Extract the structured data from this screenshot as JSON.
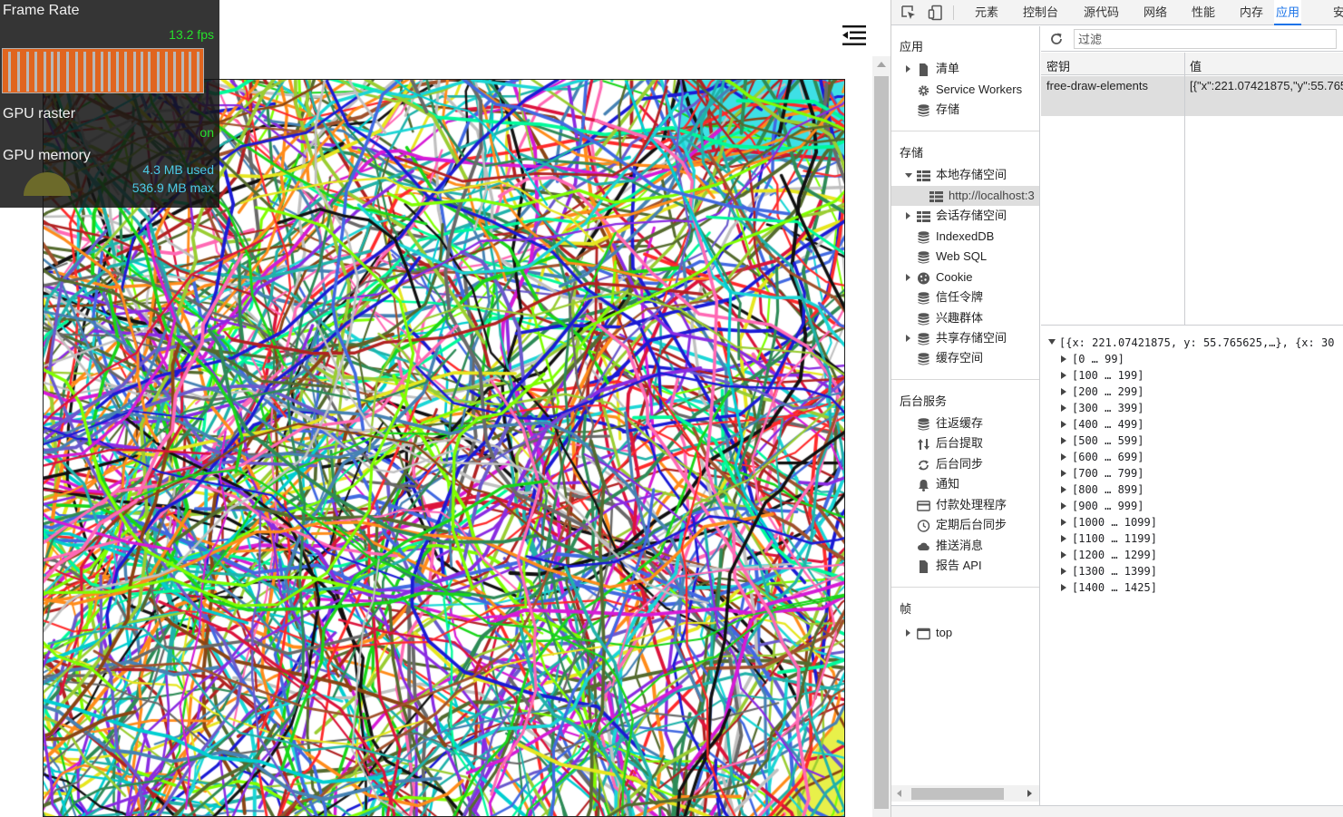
{
  "hud": {
    "frame_rate_label": "Frame Rate",
    "fps_value": "13.2 fps",
    "gpu_raster_label": "GPU raster",
    "gpu_raster_value": "on",
    "gpu_memory_label": "GPU memory",
    "gpu_memory_used": "4.3 MB used",
    "gpu_memory_max": "536.9 MB max",
    "fps_color": "#26e02b",
    "memory_color": "#4ccbe6"
  },
  "page": {
    "menu_icon": "menu-collapse-icon"
  },
  "devtools": {
    "tabs": [
      {
        "label": "元素",
        "active": false
      },
      {
        "label": "控制台",
        "active": false
      },
      {
        "label": "源代码",
        "active": false
      },
      {
        "label": "网络",
        "active": false
      },
      {
        "label": "性能",
        "active": false
      },
      {
        "label": "内存",
        "active": false
      },
      {
        "label": "应用",
        "active": true
      },
      {
        "label": "安",
        "active": false
      }
    ],
    "accent_color": "#1a73e8",
    "sidebar": {
      "app_section": "应用",
      "app_items": [
        {
          "label": "清单",
          "icon": "file-icon",
          "expandable": true
        },
        {
          "label": "Service Workers",
          "icon": "gear-icon",
          "expandable": false
        },
        {
          "label": "存储",
          "icon": "database-icon",
          "expandable": false
        }
      ],
      "storage_section": "存储",
      "storage_items": [
        {
          "label": "本地存储空间",
          "icon": "grid-icon",
          "expandable": true,
          "expanded": true
        },
        {
          "label": "http://localhost:3",
          "icon": "grid-icon",
          "child": true,
          "selected": true
        },
        {
          "label": "会话存储空间",
          "icon": "grid-icon",
          "expandable": true
        },
        {
          "label": "IndexedDB",
          "icon": "database-icon"
        },
        {
          "label": "Web SQL",
          "icon": "database-icon"
        },
        {
          "label": "Cookie",
          "icon": "cookie-icon",
          "expandable": true
        },
        {
          "label": "信任令牌",
          "icon": "database-icon"
        },
        {
          "label": "兴趣群体",
          "icon": "database-icon"
        },
        {
          "label": "共享存储空间",
          "icon": "database-icon",
          "expandable": true
        },
        {
          "label": "缓存空间",
          "icon": "database-icon"
        }
      ],
      "bg_section": "后台服务",
      "bg_items": [
        {
          "label": "往返缓存",
          "icon": "database-icon"
        },
        {
          "label": "后台提取",
          "icon": "sort-arrows-icon"
        },
        {
          "label": "后台同步",
          "icon": "sync-icon"
        },
        {
          "label": "通知",
          "icon": "bell-icon"
        },
        {
          "label": "付款处理程序",
          "icon": "card-icon"
        },
        {
          "label": "定期后台同步",
          "icon": "clock-icon"
        },
        {
          "label": "推送消息",
          "icon": "cloud-icon"
        },
        {
          "label": "报告 API",
          "icon": "file-icon"
        }
      ],
      "frames_section": "帧",
      "frames_items": [
        {
          "label": "top",
          "icon": "frame-icon",
          "expandable": true
        }
      ]
    },
    "filter_placeholder": "过滤",
    "table": {
      "key_header": "密钥",
      "value_header": "值",
      "rows": [
        {
          "key": "free-draw-elements",
          "value": "[{\"x\":221.07421875,\"y\":55.765"
        }
      ]
    },
    "preview": {
      "root": "[{x: 221.07421875, y: 55.765625,…}, {x: 30",
      "ranges": [
        "[0 … 99]",
        "[100 … 199]",
        "[200 … 299]",
        "[300 … 399]",
        "[400 … 499]",
        "[500 … 599]",
        "[600 … 699]",
        "[700 … 799]",
        "[800 … 899]",
        "[900 … 999]",
        "[1000 … 1099]",
        "[1100 … 1199]",
        "[1200 … 1299]",
        "[1300 … 1399]",
        "[1400 … 1425]"
      ]
    }
  }
}
